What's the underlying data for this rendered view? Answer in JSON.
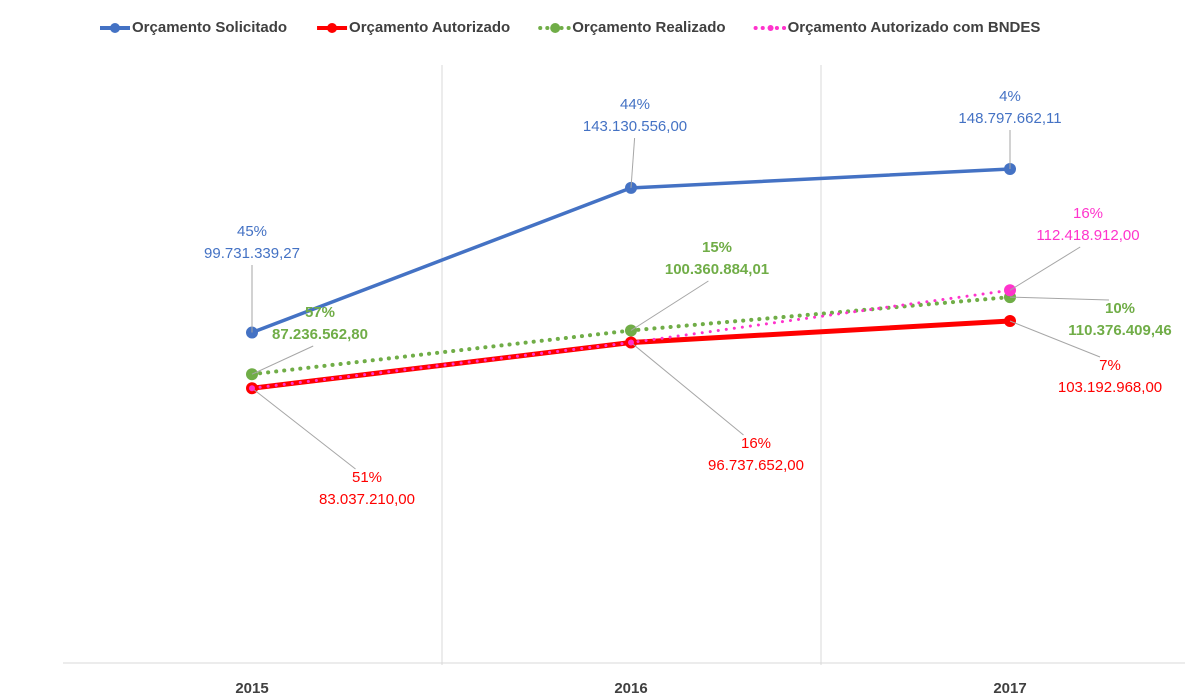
{
  "chart_data": {
    "type": "line",
    "categories": [
      "2015",
      "2016",
      "2017"
    ],
    "ylim": [
      0,
      180000000
    ],
    "series": [
      {
        "name": "Orçamento Solicitado",
        "color": "#4472c4",
        "line_style": "solid",
        "values": [
          99731339.27,
          143130556.0,
          148797662.11
        ],
        "value_labels": [
          "99.731.339,27",
          "143.130.556,00",
          "148.797.662,11"
        ],
        "percent_labels": [
          "45%",
          "44%",
          "4%"
        ],
        "label_bold": false
      },
      {
        "name": "Orçamento Autorizado",
        "color": "#ff0000",
        "line_style": "solid",
        "values": [
          83037210.0,
          96737652.0,
          103192968.0
        ],
        "value_labels": [
          "83.037.210,00",
          "96.737.652,00",
          "103.192.968,00"
        ],
        "percent_labels": [
          "51%",
          "16%",
          "7%"
        ],
        "label_bold": false
      },
      {
        "name": "Orçamento Realizado",
        "color": "#70ad47",
        "line_style": "dotted",
        "values": [
          87236562.8,
          100360884.01,
          110376409.46
        ],
        "value_labels": [
          "87.236.562,80",
          "100.360.884,01",
          "110.376.409,46"
        ],
        "percent_labels": [
          "57%",
          "15%",
          "10%"
        ],
        "label_bold": true
      },
      {
        "name": "Orçamento Autorizado com BNDES",
        "color": "#ff33cc",
        "line_style": "dotted",
        "values": [
          83037210.0,
          96737652.0,
          112418912.0
        ],
        "value_labels": [
          null,
          null,
          "112.418.912,00"
        ],
        "percent_labels": [
          null,
          null,
          "16%"
        ],
        "label_bold": false
      }
    ]
  }
}
